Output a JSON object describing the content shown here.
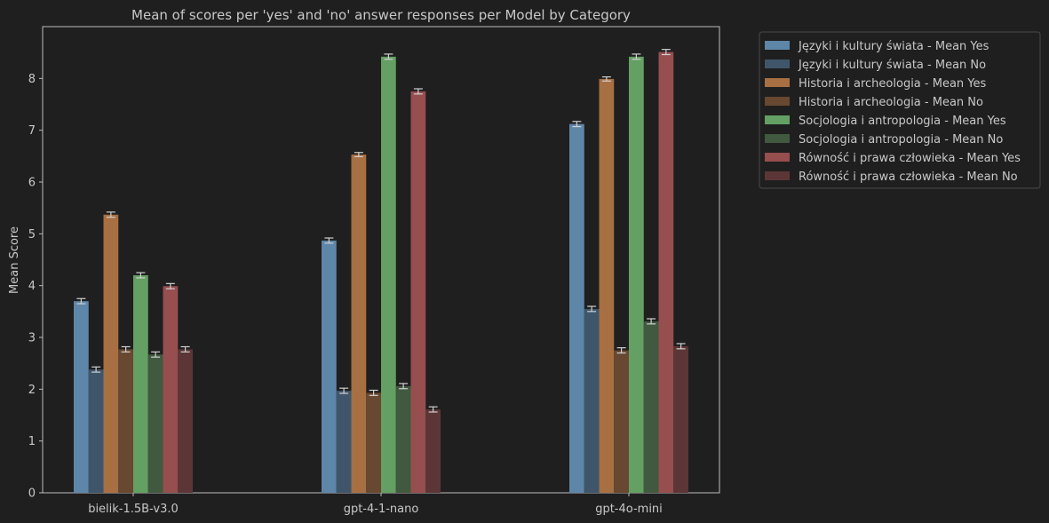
{
  "chart_data": {
    "type": "bar",
    "title": "Mean of scores per 'yes' and 'no' answer responses per Model by Category",
    "xlabel": "",
    "ylabel": "Mean Score",
    "ylim": [
      0,
      9
    ],
    "yticks": [
      0,
      1,
      2,
      3,
      4,
      5,
      6,
      7,
      8
    ],
    "grid": false,
    "legend_position": "outside-top-right",
    "categories": [
      "bielik-1.5B-v3.0",
      "gpt-4-1-nano",
      "gpt-4o-mini"
    ],
    "series": [
      {
        "name": "Języki i kultury świata - Mean Yes",
        "color": "#5e86a8",
        "values": [
          3.7,
          4.87,
          7.12
        ],
        "errors": [
          0.05,
          0.05,
          0.05
        ]
      },
      {
        "name": "Języki i kultury świata - Mean No",
        "color": "#3f566a",
        "values": [
          2.38,
          1.97,
          3.55
        ],
        "errors": [
          0.05,
          0.05,
          0.05
        ]
      },
      {
        "name": "Historia i archeologia - Mean Yes",
        "color": "#a86f42",
        "values": [
          5.37,
          6.53,
          7.99
        ],
        "errors": [
          0.05,
          0.04,
          0.04
        ]
      },
      {
        "name": "Historia i archeologia - Mean No",
        "color": "#684830",
        "values": [
          2.77,
          1.93,
          2.75
        ],
        "errors": [
          0.05,
          0.05,
          0.05
        ]
      },
      {
        "name": "Socjologia i antropologia - Mean Yes",
        "color": "#64a063",
        "values": [
          4.2,
          8.42,
          8.42
        ],
        "errors": [
          0.05,
          0.05,
          0.05
        ]
      },
      {
        "name": "Socjologia i antropologia - Mean No",
        "color": "#41593f",
        "values": [
          2.67,
          2.06,
          3.31
        ],
        "errors": [
          0.05,
          0.05,
          0.05
        ]
      },
      {
        "name": "Równość i prawa człowieka - Mean Yes",
        "color": "#964e4e",
        "values": [
          3.99,
          7.75,
          8.51
        ],
        "errors": [
          0.05,
          0.05,
          0.05
        ]
      },
      {
        "name": "Równość i prawa człowieka - Mean No",
        "color": "#5c3636",
        "values": [
          2.77,
          1.61,
          2.83
        ],
        "errors": [
          0.05,
          0.05,
          0.05
        ]
      }
    ]
  }
}
